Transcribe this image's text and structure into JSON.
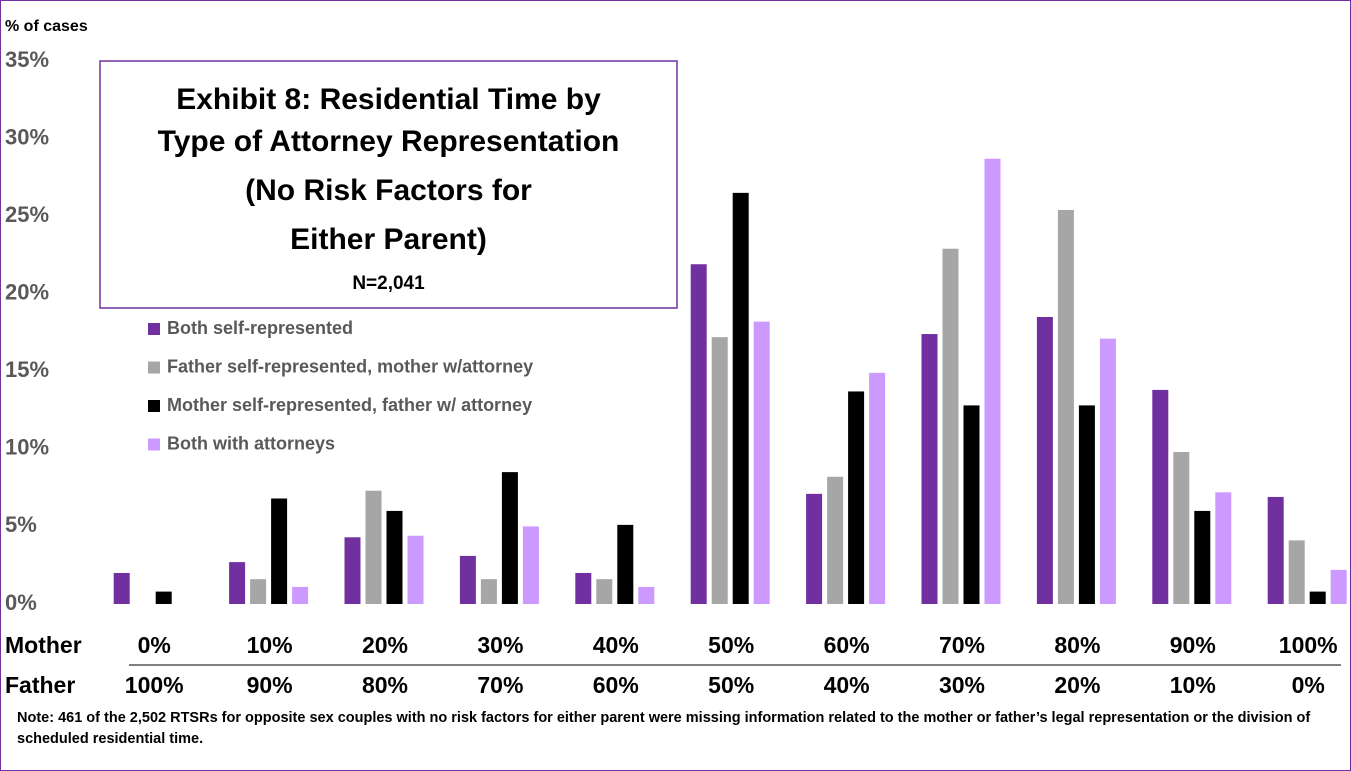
{
  "chart_data": {
    "type": "bar",
    "title": [
      "Exhibit 8: Residential Time by",
      "Type of Attorney Representation",
      "(No Risk Factors for",
      "Either Parent)"
    ],
    "subtitle": "N=2,041",
    "y_label": "% of cases",
    "row_labels": [
      "Mother",
      "Father"
    ],
    "categories": [
      "0%",
      "10%",
      "20%",
      "30%",
      "40%",
      "50%",
      "60%",
      "70%",
      "80%",
      "90%",
      "100%"
    ],
    "categories2": [
      "100%",
      "90%",
      "80%",
      "70%",
      "60%",
      "50%",
      "40%",
      "30%",
      "20%",
      "10%",
      "0%"
    ],
    "series": [
      {
        "name": "Both self-represented",
        "color": "#7030a0",
        "values": [
          2.0,
          2.7,
          4.3,
          3.1,
          2.0,
          21.9,
          7.1,
          17.4,
          18.5,
          13.8,
          6.9
        ]
      },
      {
        "name": "Father self-represented, mother w/attorney",
        "color": "#a6a6a6",
        "values": [
          0,
          1.6,
          7.3,
          1.6,
          1.6,
          17.2,
          8.2,
          22.9,
          25.4,
          9.8,
          4.1
        ]
      },
      {
        "name": "Mother self-represented, father w/ attorney",
        "color": "#000000",
        "values": [
          0.8,
          6.8,
          6.0,
          8.5,
          5.1,
          26.5,
          13.7,
          12.8,
          12.8,
          6.0,
          0.8
        ]
      },
      {
        "name": "Both with attorneys",
        "color": "#cc99ff",
        "values": [
          0,
          1.1,
          4.4,
          5.0,
          1.1,
          18.2,
          14.9,
          28.7,
          17.1,
          7.2,
          2.2
        ]
      }
    ],
    "ylim": [
      0,
      35
    ],
    "yticks": [
      {
        "value": 0,
        "label": "0%"
      },
      {
        "value": 5,
        "label": "5%"
      },
      {
        "value": 10,
        "label": "10%"
      },
      {
        "value": 15,
        "label": "15%"
      },
      {
        "value": 20,
        "label": "20%"
      },
      {
        "value": 25,
        "label": "25%"
      },
      {
        "value": 30,
        "label": "30%"
      },
      {
        "value": 35,
        "label": "35%"
      }
    ],
    "note": "Note: 461 of the 2,502 RTSRs for opposite sex couples with no risk factors for either parent were missing information related to the mother or father’s legal representation or the division of scheduled residential time."
  }
}
